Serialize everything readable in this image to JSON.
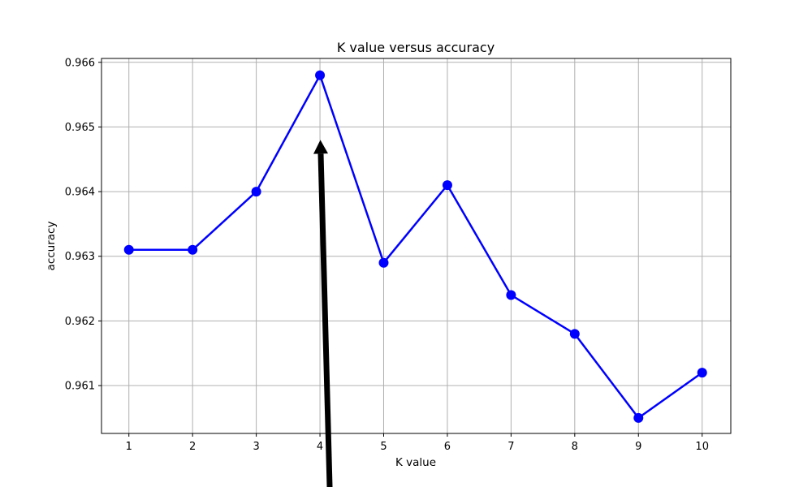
{
  "chart_data": {
    "type": "line",
    "title": "K value versus accuracy",
    "xlabel": "K value",
    "ylabel": "accuracy",
    "x": [
      1,
      2,
      3,
      4,
      5,
      6,
      7,
      8,
      9,
      10
    ],
    "series": [
      {
        "values": [
          0.9631,
          0.9631,
          0.964,
          0.9658,
          0.9629,
          0.9641,
          0.9624,
          0.9618,
          0.9605,
          0.9612
        ],
        "color": "#0000ff",
        "marker": "circle"
      }
    ],
    "xticks": [
      "1",
      "2",
      "3",
      "4",
      "5",
      "6",
      "7",
      "8",
      "9",
      "10"
    ],
    "yticks": [
      "0.961",
      "0.962",
      "0.963",
      "0.964",
      "0.965",
      "0.966"
    ],
    "xlim": [
      0.57,
      10.45
    ],
    "ylim": [
      0.96026,
      0.96606
    ],
    "grid": true,
    "annotation": {
      "type": "arrow",
      "target": [
        4,
        0.9648
      ],
      "color": "#000000"
    }
  }
}
